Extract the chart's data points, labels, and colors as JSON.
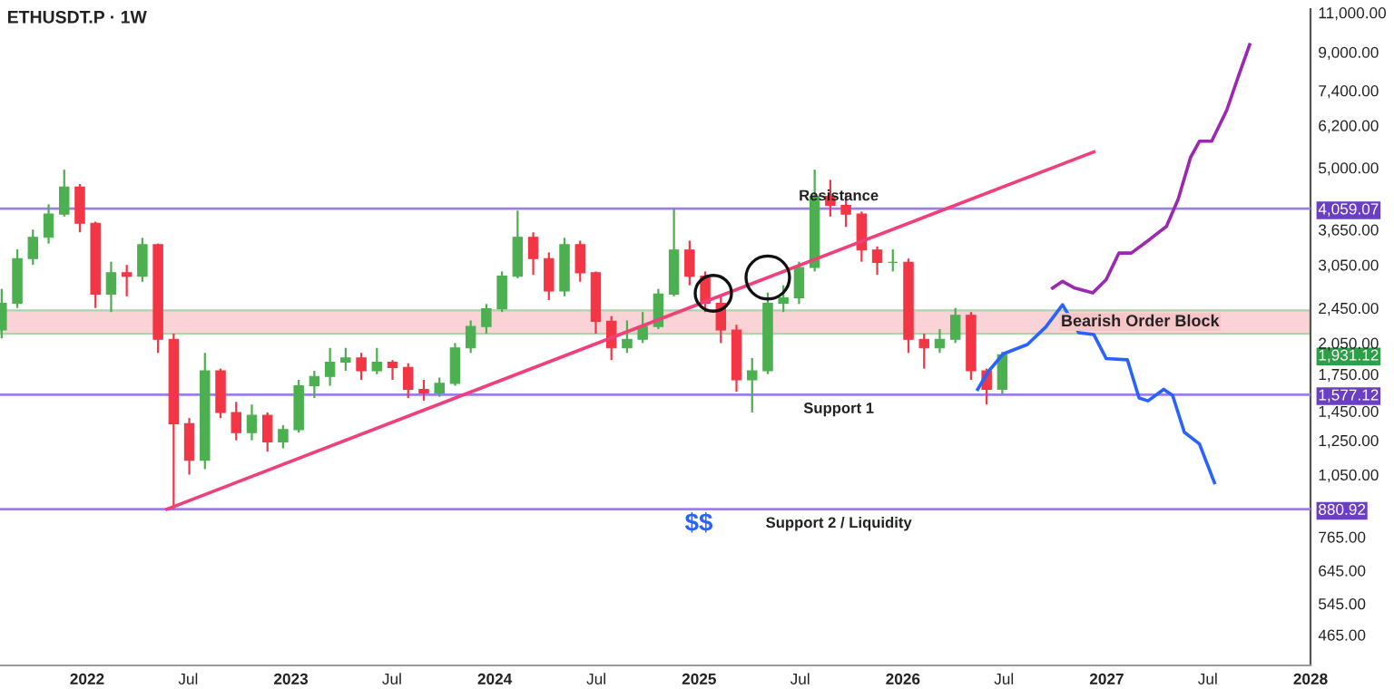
{
  "chart_data": {
    "type": "candlestick",
    "title": "ETHUSDT.P · 1W",
    "x": [
      "2021-08-01",
      "2021-08-29",
      "2021-09-26",
      "2021-10-24",
      "2021-11-21",
      "2021-12-19",
      "2022-01-16",
      "2022-02-13",
      "2022-03-13",
      "2022-04-10",
      "2022-05-08",
      "2022-06-05",
      "2022-07-03",
      "2022-07-31",
      "2022-08-28",
      "2022-09-25",
      "2022-10-23",
      "2022-11-20",
      "2022-12-18",
      "2023-01-15",
      "2023-02-12",
      "2023-03-12",
      "2023-04-09",
      "2023-05-07",
      "2023-06-04",
      "2023-07-02",
      "2023-07-30",
      "2023-08-27",
      "2023-09-24",
      "2023-10-22",
      "2023-11-19",
      "2023-12-17",
      "2024-01-14",
      "2024-02-11",
      "2024-03-10",
      "2024-04-07",
      "2024-05-05",
      "2024-06-02",
      "2024-06-30",
      "2024-07-28",
      "2024-08-25",
      "2024-09-22",
      "2024-10-20",
      "2024-11-17",
      "2024-12-15",
      "2025-01-12",
      "2025-02-09",
      "2025-03-09",
      "2025-04-06",
      "2025-05-04",
      "2025-06-01",
      "2025-06-29",
      "2025-07-27",
      "2025-08-24",
      "2025-09-21",
      "2025-10-19",
      "2025-11-16",
      "2025-12-14",
      "2026-01-11",
      "2026-02-08",
      "2026-03-08",
      "2026-04-05",
      "2026-05-03",
      "2026-05-31",
      "2026-06-28"
    ],
    "ohlc": [
      [
        2190,
        2700,
        2100,
        2510
      ],
      [
        2510,
        3300,
        2450,
        3150
      ],
      [
        3150,
        3650,
        3050,
        3510
      ],
      [
        3510,
        4150,
        3400,
        3950
      ],
      [
        3950,
        4950,
        3900,
        4530
      ],
      [
        4530,
        4600,
        3600,
        3770
      ],
      [
        3770,
        3800,
        2450,
        2630
      ],
      [
        2630,
        3100,
        2400,
        2930
      ],
      [
        2930,
        3050,
        2600,
        2880
      ],
      [
        2880,
        3500,
        2800,
        3380
      ],
      [
        3380,
        3400,
        1950,
        2090
      ],
      [
        2090,
        2150,
        881,
        1360
      ],
      [
        1360,
        1400,
        1050,
        1130
      ],
      [
        1130,
        1950,
        1080,
        1780
      ],
      [
        1780,
        1800,
        1400,
        1440
      ],
      [
        1440,
        1520,
        1250,
        1300
      ],
      [
        1300,
        1500,
        1250,
        1420
      ],
      [
        1420,
        1440,
        1180,
        1240
      ],
      [
        1240,
        1350,
        1200,
        1320
      ],
      [
        1320,
        1700,
        1300,
        1650
      ],
      [
        1650,
        1780,
        1550,
        1730
      ],
      [
        1730,
        2000,
        1650,
        1860
      ],
      [
        1860,
        2000,
        1780,
        1900
      ],
      [
        1900,
        1950,
        1700,
        1780
      ],
      [
        1780,
        2000,
        1750,
        1860
      ],
      [
        1860,
        1880,
        1700,
        1810
      ],
      [
        1810,
        1850,
        1550,
        1620
      ],
      [
        1620,
        1700,
        1530,
        1590
      ],
      [
        1590,
        1720,
        1560,
        1670
      ],
      [
        1670,
        2050,
        1650,
        2000
      ],
      [
        2000,
        2300,
        1950,
        2230
      ],
      [
        2230,
        2500,
        2150,
        2440
      ],
      [
        2440,
        2950,
        2400,
        2880
      ],
      [
        2880,
        4020,
        2850,
        3510
      ],
      [
        3510,
        3600,
        2900,
        3150
      ],
      [
        3150,
        3250,
        2550,
        2670
      ],
      [
        2670,
        3500,
        2600,
        3380
      ],
      [
        3380,
        3450,
        2800,
        2930
      ],
      [
        2930,
        2950,
        2150,
        2290
      ],
      [
        2290,
        2350,
        1880,
        2000
      ],
      [
        2000,
        2300,
        1950,
        2090
      ],
      [
        2090,
        2400,
        2050,
        2230
      ],
      [
        2230,
        2700,
        2200,
        2630
      ],
      [
        2630,
        4060,
        2600,
        3290
      ],
      [
        3290,
        3450,
        2750,
        2880
      ],
      [
        2880,
        2950,
        2400,
        2510
      ],
      [
        2510,
        2600,
        2050,
        2190
      ],
      [
        2190,
        2250,
        1600,
        1700
      ],
      [
        1700,
        1900,
        1440,
        1780
      ],
      [
        1780,
        2650,
        1750,
        2510
      ],
      [
        2510,
        2750,
        2400,
        2580
      ],
      [
        2580,
        3100,
        2500,
        3010
      ],
      [
        3010,
        4950,
        2950,
        4320
      ],
      [
        4320,
        4700,
        3900,
        4130
      ],
      [
        4130,
        4400,
        3700,
        3950
      ],
      [
        3950,
        4000,
        3100,
        3290
      ],
      [
        3290,
        3350,
        2900,
        3090
      ],
      [
        3090,
        3300,
        2950,
        3090
      ],
      [
        3090,
        3150,
        1950,
        2090
      ],
      [
        2090,
        2150,
        1800,
        2000
      ],
      [
        2000,
        2200,
        1950,
        2090
      ],
      [
        2090,
        2450,
        2050,
        2360
      ],
      [
        2360,
        2400,
        1700,
        1780
      ],
      [
        1780,
        1800,
        1500,
        1620
      ],
      [
        1620,
        1960,
        1580,
        1931.12
      ]
    ],
    "series": [
      {
        "type": "line",
        "color": "#f0407a",
        "x": [
          "2022-05-24",
          "2026-12-09"
        ],
        "values": [
          881,
          5420
        ]
      },
      {
        "type": "line",
        "color": "#9c27b0",
        "x": [
          "2026-09-26",
          "2026-10-14",
          "2026-11-05",
          "2026-12-07",
          "2026-12-31",
          "2027-01-23",
          "2027-02-14",
          "2027-03-16",
          "2027-04-18",
          "2027-05-09",
          "2027-05-31",
          "2027-06-16",
          "2027-07-08",
          "2027-08-04",
          "2027-08-26",
          "2027-09-14"
        ],
        "values": [
          2710,
          2805,
          2710,
          2645,
          2830,
          3240,
          3240,
          3450,
          3710,
          4260,
          5260,
          5720,
          5720,
          6700,
          8030,
          9340
        ]
      },
      {
        "type": "line",
        "color": "#2962ff",
        "x": [
          "2026-05-15",
          "2026-06-03",
          "2026-06-30",
          "2026-08-12",
          "2026-09-14",
          "2026-10-14",
          "2026-11-12",
          "2026-12-09",
          "2026-12-31",
          "2027-02-07",
          "2027-02-28",
          "2027-03-16",
          "2027-04-13",
          "2027-04-29",
          "2027-05-20",
          "2027-06-16",
          "2027-07-13"
        ],
        "values": [
          1620,
          1774,
          1941,
          2035,
          2225,
          2490,
          2160,
          2140,
          1895,
          1883,
          1550,
          1528,
          1620,
          1572,
          1303,
          1228,
          1008
        ]
      }
    ],
    "log": true,
    "ylim": [
      398,
      11200
    ],
    "yticks": [
      {
        "value": 465,
        "label": "465.00"
      },
      {
        "value": 545,
        "label": "545.00"
      },
      {
        "value": 645,
        "label": "645.00"
      },
      {
        "value": 765,
        "label": "765.00"
      },
      {
        "value": 880.92,
        "label": "880.92"
      },
      {
        "value": 1050,
        "label": "1,050.00"
      },
      {
        "value": 1250,
        "label": "1,250.00"
      },
      {
        "value": 1450,
        "label": "1,450.00"
      },
      {
        "value": 1577.12,
        "label": "1,577.12"
      },
      {
        "value": 1750,
        "label": "1,750.00"
      },
      {
        "value": 1931.12,
        "label": "1,931.12"
      },
      {
        "value": 2050,
        "label": "2,050.00"
      },
      {
        "value": 2450,
        "label": "2,450.00"
      },
      {
        "value": 3050,
        "label": "3,050.00"
      },
      {
        "value": 3650,
        "label": "3,650.00"
      },
      {
        "value": 4059.07,
        "label": "4,059.07"
      },
      {
        "value": 5000,
        "label": "5,000.00"
      },
      {
        "value": 6200,
        "label": "6,200.00"
      },
      {
        "value": 7400,
        "label": "7,400.00"
      },
      {
        "value": 9000,
        "label": "9,000.00"
      },
      {
        "value": 11000,
        "label": "11,000.00"
      }
    ],
    "xlim": [
      "2021-07-29",
      "2028-01-01"
    ],
    "xticks": [
      {
        "value": "2022-01-01",
        "label": "2022"
      },
      {
        "value": "2022-07-01",
        "label": "Jul"
      },
      {
        "value": "2023-01-01",
        "label": "2023"
      },
      {
        "value": "2023-07-01",
        "label": "Jul"
      },
      {
        "value": "2024-01-01",
        "label": "2024"
      },
      {
        "value": "2024-07-01",
        "label": "Jul"
      },
      {
        "value": "2025-01-01",
        "label": "2025"
      },
      {
        "value": "2025-07-01",
        "label": "Jul"
      },
      {
        "value": "2026-01-01",
        "label": "2026"
      },
      {
        "value": "2026-07-01",
        "label": "Jul"
      },
      {
        "value": "2027-01-01",
        "label": "2027"
      },
      {
        "value": "2027-07-01",
        "label": "Jul"
      },
      {
        "value": "2028-01-01",
        "label": "2028"
      }
    ],
    "ref_lines": [
      {
        "axis": "y",
        "value": 4059.07,
        "label": "Resistance",
        "color": "#9c7ee8"
      },
      {
        "axis": "y",
        "value": 1577.12,
        "label": "Support 1",
        "color": "#9c7ee8"
      },
      {
        "axis": "y",
        "value": 880.92,
        "label": "Support 2 / Liquidity",
        "color": "#9c7ee8"
      }
    ],
    "bands": [
      {
        "axis": "y",
        "from": 2150,
        "to": 2420,
        "label": "Bearish Order Block",
        "color": "#f7c5c8"
      }
    ],
    "annotations": [
      "$$"
    ],
    "grid": false,
    "legend": false
  }
}
